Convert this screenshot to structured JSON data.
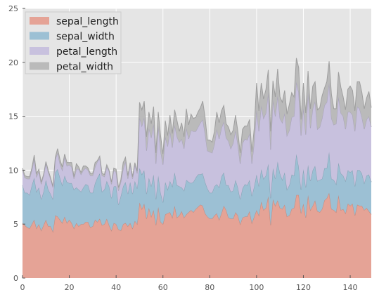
{
  "chart_data": {
    "type": "area",
    "stacked": true,
    "grid": true,
    "legend_position": "top-left",
    "xlim": [
      0,
      149
    ],
    "ylim": [
      0,
      25
    ],
    "xticks": [
      0,
      20,
      40,
      60,
      80,
      100,
      120,
      140
    ],
    "yticks": [
      0,
      5,
      10,
      15,
      20,
      25
    ],
    "x": [
      0,
      1,
      2,
      3,
      4,
      5,
      6,
      7,
      8,
      9,
      10,
      11,
      12,
      13,
      14,
      15,
      16,
      17,
      18,
      19,
      20,
      21,
      22,
      23,
      24,
      25,
      26,
      27,
      28,
      29,
      30,
      31,
      32,
      33,
      34,
      35,
      36,
      37,
      38,
      39,
      40,
      41,
      42,
      43,
      44,
      45,
      46,
      47,
      48,
      49,
      50,
      51,
      52,
      53,
      54,
      55,
      56,
      57,
      58,
      59,
      60,
      61,
      62,
      63,
      64,
      65,
      66,
      67,
      68,
      69,
      70,
      71,
      72,
      73,
      74,
      75,
      76,
      77,
      78,
      79,
      80,
      81,
      82,
      83,
      84,
      85,
      86,
      87,
      88,
      89,
      90,
      91,
      92,
      93,
      94,
      95,
      96,
      97,
      98,
      99,
      100,
      101,
      102,
      103,
      104,
      105,
      106,
      107,
      108,
      109,
      110,
      111,
      112,
      113,
      114,
      115,
      116,
      117,
      118,
      119,
      120,
      121,
      122,
      123,
      124,
      125,
      126,
      127,
      128,
      129,
      130,
      131,
      132,
      133,
      134,
      135,
      136,
      137,
      138,
      139,
      140,
      141,
      142,
      143,
      144,
      145,
      146,
      147,
      148,
      149
    ],
    "series": [
      {
        "name": "sepal_length",
        "color": "#E5A396",
        "values": [
          5.1,
          4.9,
          4.7,
          4.6,
          5.0,
          5.4,
          4.6,
          5.0,
          4.4,
          4.9,
          5.4,
          4.8,
          4.8,
          4.3,
          5.8,
          5.7,
          5.4,
          5.1,
          5.7,
          5.1,
          5.4,
          5.1,
          4.6,
          5.1,
          4.8,
          5.0,
          5.0,
          5.2,
          5.2,
          4.7,
          4.8,
          5.4,
          5.2,
          5.5,
          4.9,
          5.0,
          5.5,
          4.9,
          4.4,
          5.1,
          5.0,
          4.5,
          4.4,
          5.0,
          5.1,
          4.8,
          5.1,
          4.6,
          5.3,
          5.0,
          7.0,
          6.4,
          6.9,
          5.5,
          6.5,
          5.7,
          6.3,
          4.9,
          6.6,
          5.2,
          5.0,
          5.9,
          6.0,
          6.1,
          5.6,
          6.7,
          5.6,
          5.8,
          6.2,
          5.6,
          5.9,
          6.1,
          6.3,
          6.1,
          6.4,
          6.6,
          6.8,
          6.7,
          6.0,
          5.7,
          5.5,
          5.5,
          5.8,
          6.0,
          5.4,
          6.0,
          6.7,
          6.3,
          5.6,
          5.5,
          5.5,
          6.1,
          5.8,
          5.0,
          5.6,
          5.7,
          5.7,
          6.2,
          5.1,
          5.7,
          6.3,
          5.8,
          7.1,
          6.3,
          6.5,
          7.6,
          4.9,
          7.3,
          6.7,
          7.2,
          6.5,
          6.4,
          6.8,
          5.7,
          5.8,
          6.4,
          6.5,
          7.7,
          7.7,
          6.0,
          6.9,
          5.6,
          7.7,
          6.3,
          6.7,
          7.2,
          6.2,
          6.1,
          6.4,
          7.2,
          7.4,
          7.9,
          6.4,
          6.3,
          6.1,
          7.7,
          6.3,
          6.4,
          6.0,
          6.9,
          6.7,
          6.9,
          5.8,
          6.8,
          6.7,
          6.7,
          6.3,
          6.5,
          6.2,
          5.9
        ]
      },
      {
        "name": "sepal_width",
        "color": "#9CC0D4",
        "values": [
          3.5,
          3.0,
          3.2,
          3.1,
          3.6,
          3.9,
          3.4,
          3.4,
          2.9,
          3.1,
          3.7,
          3.4,
          3.0,
          3.0,
          4.0,
          4.4,
          3.9,
          3.5,
          3.8,
          3.8,
          3.4,
          3.7,
          3.6,
          3.3,
          3.4,
          3.0,
          3.4,
          3.5,
          3.4,
          3.2,
          3.1,
          3.4,
          4.1,
          4.2,
          3.1,
          3.2,
          3.5,
          3.6,
          3.0,
          3.4,
          3.5,
          2.3,
          3.2,
          3.5,
          3.8,
          3.0,
          3.8,
          3.2,
          3.7,
          3.3,
          3.2,
          3.2,
          3.1,
          2.3,
          2.8,
          2.8,
          3.3,
          2.4,
          2.9,
          2.7,
          2.0,
          3.0,
          2.2,
          2.9,
          2.9,
          3.1,
          3.0,
          2.7,
          2.2,
          2.5,
          3.2,
          2.8,
          2.5,
          2.8,
          2.9,
          3.0,
          2.8,
          3.0,
          2.9,
          2.6,
          2.4,
          2.4,
          2.7,
          2.7,
          3.0,
          3.4,
          3.1,
          2.3,
          3.0,
          2.5,
          2.6,
          3.0,
          2.6,
          2.3,
          2.7,
          3.0,
          2.9,
          2.9,
          2.5,
          2.8,
          3.3,
          2.7,
          3.0,
          2.9,
          3.0,
          3.0,
          2.5,
          2.9,
          2.5,
          3.6,
          3.2,
          2.7,
          3.0,
          2.5,
          2.8,
          3.2,
          3.0,
          3.8,
          2.6,
          2.2,
          3.2,
          2.8,
          2.8,
          2.7,
          3.3,
          3.2,
          2.8,
          3.0,
          2.8,
          3.0,
          2.8,
          3.8,
          2.8,
          2.8,
          2.6,
          3.0,
          3.4,
          3.1,
          3.0,
          3.1,
          3.1,
          3.1,
          2.7,
          3.2,
          3.3,
          3.0,
          2.5,
          3.0,
          3.4,
          3.0
        ]
      },
      {
        "name": "petal_length",
        "color": "#C8C1DE",
        "values": [
          1.4,
          1.4,
          1.3,
          1.5,
          1.4,
          1.7,
          1.4,
          1.5,
          1.4,
          1.5,
          1.5,
          1.6,
          1.4,
          1.1,
          1.2,
          1.5,
          1.3,
          1.4,
          1.7,
          1.5,
          1.7,
          1.5,
          1.0,
          1.7,
          1.9,
          1.6,
          1.6,
          1.5,
          1.4,
          1.6,
          1.6,
          1.5,
          1.5,
          1.4,
          1.5,
          1.2,
          1.3,
          1.4,
          1.3,
          1.5,
          1.3,
          1.3,
          1.3,
          1.6,
          1.9,
          1.4,
          1.6,
          1.4,
          1.5,
          1.4,
          4.7,
          4.5,
          4.9,
          4.0,
          4.6,
          4.5,
          4.7,
          3.3,
          4.6,
          3.9,
          3.5,
          4.2,
          4.0,
          4.7,
          3.6,
          4.4,
          4.5,
          4.1,
          4.5,
          3.9,
          4.8,
          4.0,
          4.9,
          4.7,
          4.3,
          4.4,
          4.8,
          5.0,
          4.5,
          3.5,
          3.8,
          3.7,
          3.9,
          5.1,
          4.5,
          4.5,
          4.7,
          4.4,
          4.1,
          4.0,
          4.4,
          4.6,
          4.0,
          3.3,
          4.2,
          4.2,
          4.2,
          4.3,
          3.0,
          4.1,
          6.0,
          5.1,
          5.9,
          5.6,
          5.8,
          6.6,
          4.5,
          6.3,
          5.8,
          6.1,
          5.1,
          5.3,
          5.5,
          5.0,
          5.1,
          5.3,
          5.5,
          6.7,
          6.9,
          5.0,
          5.7,
          4.9,
          6.7,
          4.9,
          5.7,
          6.0,
          4.8,
          4.9,
          5.6,
          5.8,
          6.1,
          6.4,
          5.6,
          5.1,
          5.6,
          6.1,
          5.6,
          5.5,
          4.8,
          5.4,
          5.6,
          5.1,
          5.1,
          5.9,
          5.7,
          5.2,
          5.0,
          5.2,
          5.4,
          5.1
        ]
      },
      {
        "name": "petal_width",
        "color": "#BABABA",
        "values": [
          0.2,
          0.2,
          0.2,
          0.2,
          0.2,
          0.4,
          0.3,
          0.2,
          0.2,
          0.1,
          0.2,
          0.2,
          0.1,
          0.1,
          0.2,
          0.4,
          0.4,
          0.3,
          0.3,
          0.3,
          0.2,
          0.4,
          0.2,
          0.5,
          0.2,
          0.2,
          0.4,
          0.2,
          0.2,
          0.2,
          0.2,
          0.4,
          0.1,
          0.2,
          0.2,
          0.2,
          0.2,
          0.1,
          0.2,
          0.2,
          0.3,
          0.3,
          0.2,
          0.6,
          0.4,
          0.3,
          0.2,
          0.2,
          0.2,
          0.2,
          1.4,
          1.5,
          1.5,
          1.3,
          1.5,
          1.3,
          1.6,
          1.0,
          1.3,
          1.4,
          1.0,
          1.5,
          1.0,
          1.4,
          1.3,
          1.4,
          1.5,
          1.0,
          1.5,
          1.1,
          1.8,
          1.3,
          1.5,
          1.2,
          1.3,
          1.4,
          1.4,
          1.7,
          1.5,
          1.0,
          1.1,
          1.0,
          1.2,
          1.6,
          1.5,
          1.6,
          1.5,
          1.3,
          1.3,
          1.3,
          1.2,
          1.4,
          1.2,
          1.0,
          1.3,
          1.2,
          1.3,
          1.3,
          1.1,
          1.3,
          2.5,
          1.9,
          2.1,
          1.8,
          2.2,
          2.1,
          1.7,
          1.8,
          1.8,
          2.5,
          2.0,
          1.9,
          2.1,
          2.0,
          2.4,
          2.3,
          1.8,
          2.2,
          2.3,
          1.5,
          2.3,
          2.0,
          2.0,
          1.8,
          2.1,
          1.8,
          1.8,
          1.8,
          2.1,
          1.6,
          1.9,
          2.0,
          2.2,
          1.5,
          1.4,
          2.3,
          2.4,
          1.8,
          1.8,
          2.1,
          2.4,
          2.3,
          1.9,
          2.3,
          2.5,
          2.3,
          1.9,
          2.0,
          2.3,
          1.8
        ]
      }
    ]
  }
}
